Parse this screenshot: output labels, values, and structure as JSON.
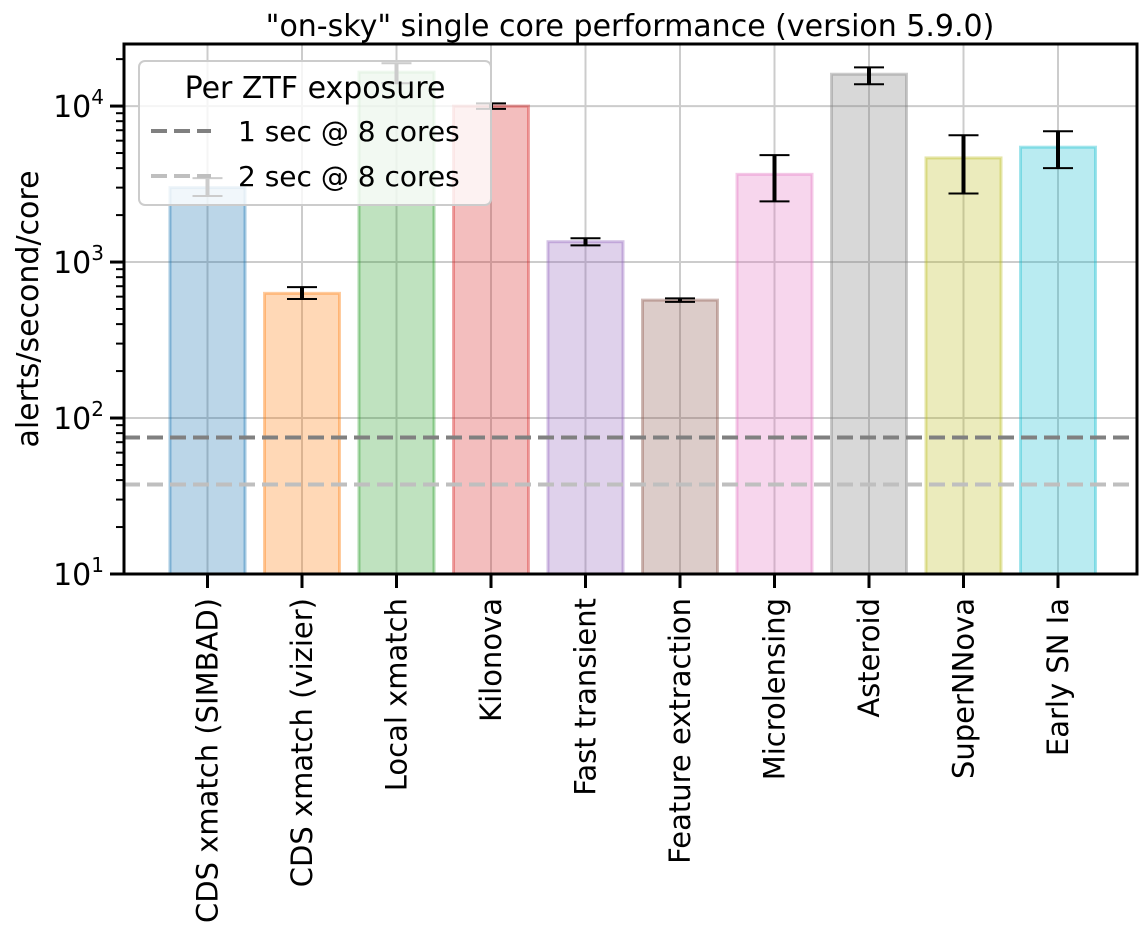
{
  "chart_data": {
    "type": "bar",
    "title": "\"on-sky\" single core performance (version 5.9.0)",
    "xlabel": "",
    "ylabel": "alerts/second/core",
    "yscale": "log",
    "ylim": [
      10,
      25000
    ],
    "grid": true,
    "ytick_labels": [
      {
        "value": 10,
        "base": "10",
        "exp": "1"
      },
      {
        "value": 100,
        "base": "10",
        "exp": "2"
      },
      {
        "value": 1000,
        "base": "10",
        "exp": "3"
      },
      {
        "value": 10000,
        "base": "10",
        "exp": "4"
      }
    ],
    "categories": [
      "CDS xmatch (SIMBAD)",
      "CDS xmatch (vizier)",
      "Local xmatch",
      "Kilonova",
      "Fast transient",
      "Feature extraction",
      "Microlensing",
      "Asteroid",
      "SuperNNova",
      "Early SN Ia"
    ],
    "values": [
      3000,
      630,
      16500,
      10000,
      1350,
      570,
      3650,
      16000,
      4650,
      5450
    ],
    "error_low": [
      2650,
      580,
      14000,
      9600,
      1280,
      555,
      2450,
      13800,
      2750,
      4000
    ],
    "error_high": [
      3450,
      690,
      18800,
      10400,
      1420,
      585,
      4850,
      17700,
      6500,
      6900
    ],
    "colors": [
      "#1f77b4",
      "#ff7f0e",
      "#2ca02c",
      "#d62728",
      "#9467bd",
      "#8c564b",
      "#e377c2",
      "#7f7f7f",
      "#bcbd22",
      "#17becf"
    ],
    "reference_lines": [
      {
        "label": "1 sec @ 8 cores",
        "value": 75,
        "color": "#808080"
      },
      {
        "label": "2 sec @ 8 cores",
        "value": 37.5,
        "color": "#bfbfbf"
      }
    ],
    "legend": {
      "title": "Per ZTF exposure",
      "placement": "top-left"
    }
  }
}
